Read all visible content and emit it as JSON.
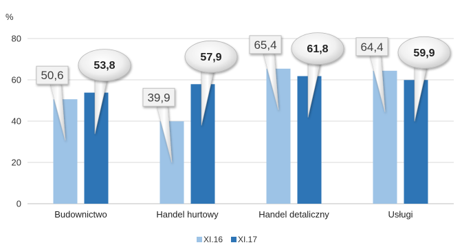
{
  "chart_data": {
    "type": "bar",
    "title": "",
    "ylabel": "%",
    "xlabel": "",
    "ylim": [
      0,
      80
    ],
    "yticks": [
      "0",
      "20",
      "40",
      "60",
      "80"
    ],
    "grid": true,
    "legend_position": "bottom",
    "categories": [
      "Budownictwo",
      "Handel hurtowy",
      "Handel detaliczny",
      "Usługi"
    ],
    "series": [
      {
        "name": "XI.16",
        "values": [
          50.6,
          39.9,
          65.4,
          64.4
        ],
        "labels": [
          "50,6",
          "39,9",
          "65,4",
          "64,4"
        ],
        "color": "#9dc3e6"
      },
      {
        "name": "XI.17",
        "values": [
          53.8,
          57.9,
          61.8,
          59.9
        ],
        "labels": [
          "53,8",
          "57,9",
          "61,8",
          "59,9"
        ],
        "color": "#2e75b6"
      }
    ]
  }
}
